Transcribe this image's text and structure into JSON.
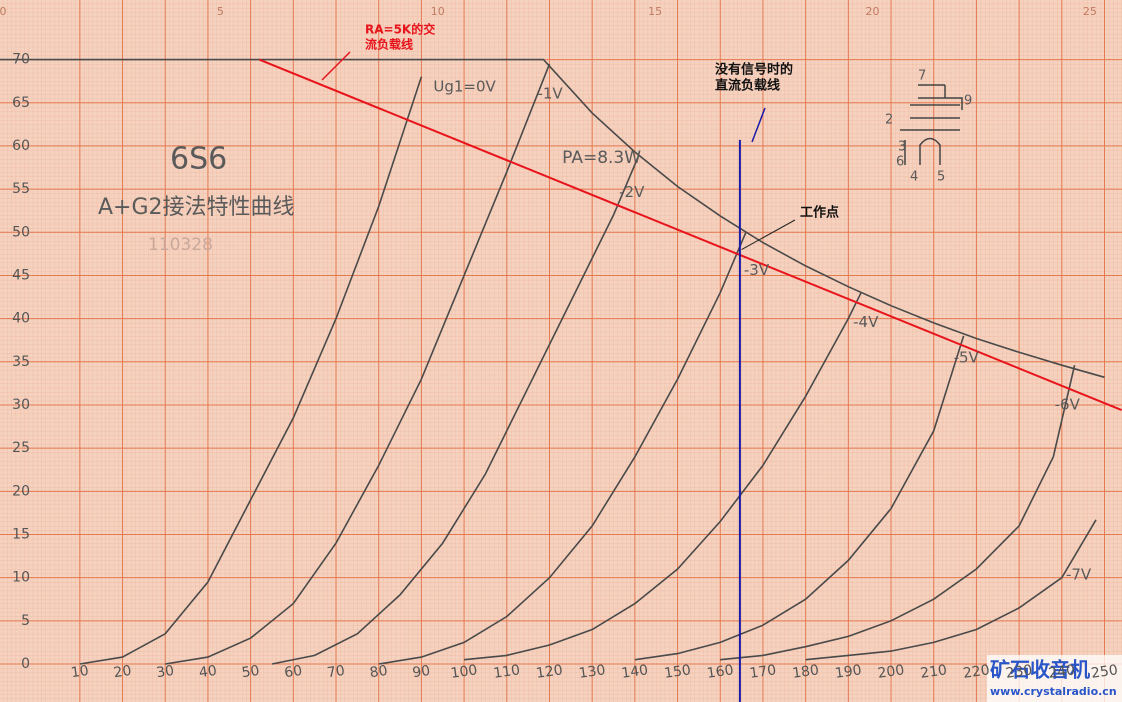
{
  "chart_data": {
    "type": "line",
    "title": "6S6",
    "subtitle": "A+G2接法特性曲线",
    "serial": "110328",
    "xlim": [
      -8.7,
      254.1
    ],
    "ylim": [
      -4.4,
      76.9
    ],
    "xticks": [
      10,
      20,
      30,
      40,
      50,
      60,
      70,
      80,
      90,
      100,
      110,
      120,
      130,
      140,
      150,
      160,
      170,
      180,
      190,
      200,
      210,
      220,
      230,
      240,
      250
    ],
    "yticks": [
      0,
      5,
      10,
      15,
      20,
      25,
      30,
      35,
      40,
      45,
      50,
      55,
      60,
      65,
      70
    ],
    "x2lim": [
      -0.07,
      25.74
    ],
    "x2ticks": [
      0,
      5,
      10,
      15,
      20,
      25
    ],
    "grid": true,
    "series": [
      {
        "name": "Ug1=0V",
        "color": "#4a4a4a",
        "x": [
          10,
          20,
          30,
          40,
          50,
          60,
          70,
          80,
          90
        ],
        "values": [
          0,
          0.8,
          3.5,
          9.5,
          19,
          28.5,
          40,
          53,
          68
        ]
      },
      {
        "name": "-1V",
        "color": "#4a4a4a",
        "x": [
          30,
          40,
          50,
          60,
          70,
          80,
          90,
          100,
          110,
          120
        ],
        "values": [
          0,
          0.8,
          3,
          7,
          14,
          23,
          33,
          45,
          57,
          69.5
        ]
      },
      {
        "name": "-2V",
        "color": "#4a4a4a",
        "x": [
          55,
          65,
          75,
          85,
          95,
          105,
          115,
          125,
          135,
          141
        ],
        "values": [
          0,
          1,
          3.5,
          8,
          14,
          22,
          32,
          42,
          52,
          59
        ]
      },
      {
        "name": "-3V",
        "color": "#4a4a4a",
        "x": [
          80,
          90,
          100,
          110,
          120,
          130,
          140,
          150,
          160,
          166
        ],
        "values": [
          0,
          0.8,
          2.5,
          5.5,
          10,
          16,
          24,
          33,
          43,
          50
        ]
      },
      {
        "name": "-4V",
        "color": "#4a4a4a",
        "x": [
          100,
          110,
          120,
          130,
          140,
          150,
          160,
          170,
          180,
          190,
          193
        ],
        "values": [
          0.5,
          1,
          2.2,
          4,
          7,
          11,
          16.5,
          23,
          31,
          40,
          43
        ]
      },
      {
        "name": "-5V",
        "color": "#4a4a4a",
        "x": [
          140,
          150,
          160,
          170,
          180,
          190,
          200,
          210,
          217
        ],
        "values": [
          0.5,
          1.2,
          2.5,
          4.5,
          7.5,
          12,
          18,
          27,
          38
        ]
      },
      {
        "name": "-6V",
        "color": "#4a4a4a",
        "x": [
          160,
          170,
          180,
          190,
          200,
          210,
          220,
          230,
          238,
          243
        ],
        "values": [
          0.5,
          1,
          2,
          3.2,
          5,
          7.5,
          11,
          16,
          24,
          34.6
        ]
      },
      {
        "name": "-7V",
        "color": "#4a4a4a",
        "x": [
          180,
          190,
          200,
          210,
          220,
          230,
          240,
          248
        ],
        "values": [
          0.5,
          1,
          1.5,
          2.5,
          4,
          6.5,
          10,
          16.7
        ]
      },
      {
        "name": "PA=8.3W",
        "color": "#4a4a4a",
        "x": [
          -8.7,
          118.6,
          130,
          140,
          150,
          160,
          170,
          180,
          190,
          200,
          210,
          220,
          230,
          240,
          250
        ],
        "values": [
          70,
          70,
          63.8,
          59.3,
          55.3,
          51.9,
          48.8,
          46.1,
          43.7,
          41.5,
          39.5,
          37.7,
          36.1,
          34.6,
          33.2
        ]
      },
      {
        "color": "#e8141c",
        "x": [
          52,
          254
        ],
        "values": [
          70,
          29.4
        ]
      },
      {
        "color": "#1a1aa8",
        "x": [
          164.6,
          164.6
        ],
        "values": [
          60.7,
          -4.4
        ]
      }
    ],
    "ac_load_line_label": [
      "RA=5K的交",
      "流负载线"
    ],
    "dc_load_line_label": [
      "没有信号时的",
      "直流负载线"
    ],
    "operating_point": {
      "x": 165,
      "y": 48,
      "label": "工作点"
    },
    "tube_pins": [
      "7",
      "9",
      "2",
      "3",
      "6",
      "4",
      "5"
    ],
    "watermark": "矿石收音机",
    "watermark_url": "www.crystalradio.cn"
  }
}
